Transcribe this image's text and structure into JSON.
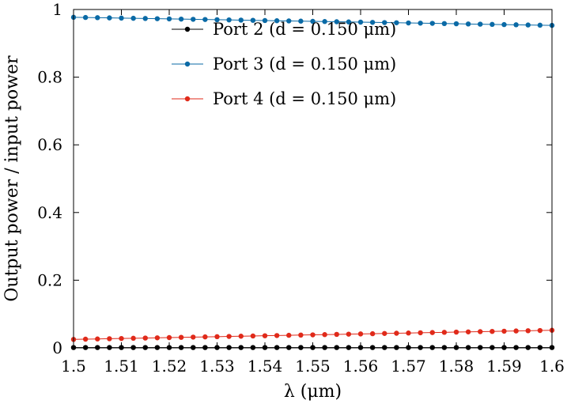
{
  "chart_data": {
    "type": "line",
    "xlabel": "λ (μm)",
    "ylabel": "Output power / input power",
    "xlim": [
      1.5,
      1.6
    ],
    "ylim": [
      0,
      1
    ],
    "xticks": [
      "1.5",
      "1.51",
      "1.52",
      "1.53",
      "1.54",
      "1.55",
      "1.56",
      "1.57",
      "1.58",
      "1.59",
      "1.6"
    ],
    "yticks": [
      "0",
      "0.2",
      "0.4",
      "0.6",
      "0.8",
      "1"
    ],
    "grid": false,
    "legend_position": "top",
    "x": [
      1.5,
      1.6
    ],
    "series": [
      {
        "name": "Port 2 (d = 0.150 μm)",
        "color": "#000000",
        "values": [
          0.001,
          0.001
        ],
        "points": 41
      },
      {
        "name": "Port 3 (d = 0.150 μm)",
        "color": "#0a6aa6",
        "values": [
          0.977,
          0.953
        ],
        "points": 41
      },
      {
        "name": "Port 4 (d = 0.150 μm)",
        "color": "#e02a1a",
        "values": [
          0.025,
          0.052
        ],
        "points": 41
      }
    ]
  }
}
